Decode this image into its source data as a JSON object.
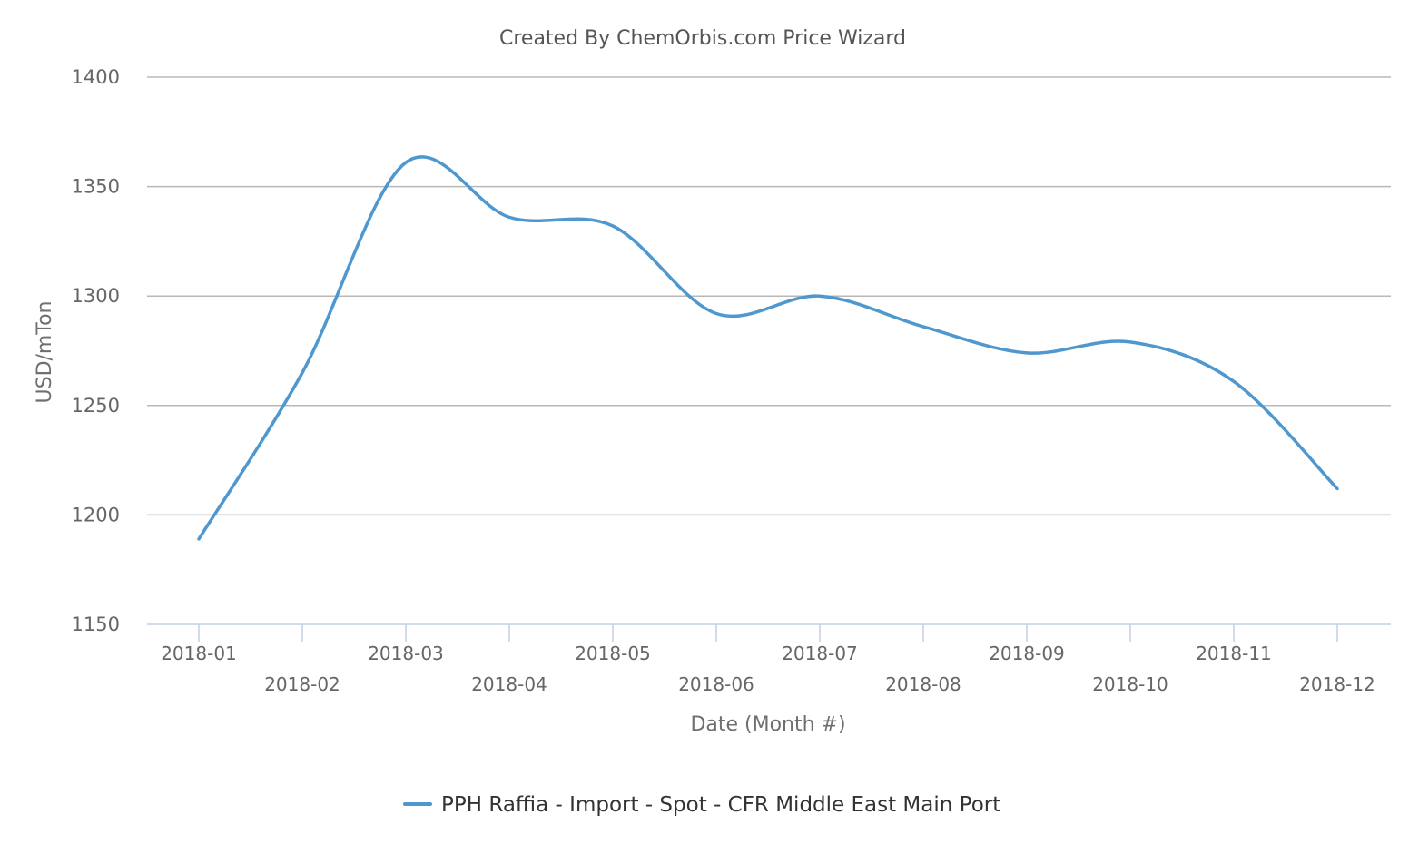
{
  "chart_data": {
    "type": "line",
    "title": "Created By ChemOrbis.com Price Wizard",
    "xlabel": "Date (Month #)",
    "ylabel": "USD/mTon",
    "categories": [
      "2018-01",
      "2018-02",
      "2018-03",
      "2018-04",
      "2018-05",
      "2018-06",
      "2018-07",
      "2018-08",
      "2018-09",
      "2018-10",
      "2018-11",
      "2018-12"
    ],
    "ylim": [
      1150,
      1400
    ],
    "yticks": [
      "1150",
      "1200",
      "1250",
      "1300",
      "1350",
      "1400"
    ],
    "series": [
      {
        "name": "PPH Raffia - Import - Spot - CFR Middle East Main Port",
        "values": [
          1189,
          1265,
          1361,
          1336,
          1332,
          1292,
          1300,
          1286,
          1274,
          1279,
          1261,
          1212
        ],
        "color": "#4e98cf"
      }
    ],
    "grid": true,
    "legend_position": "bottom-center"
  }
}
